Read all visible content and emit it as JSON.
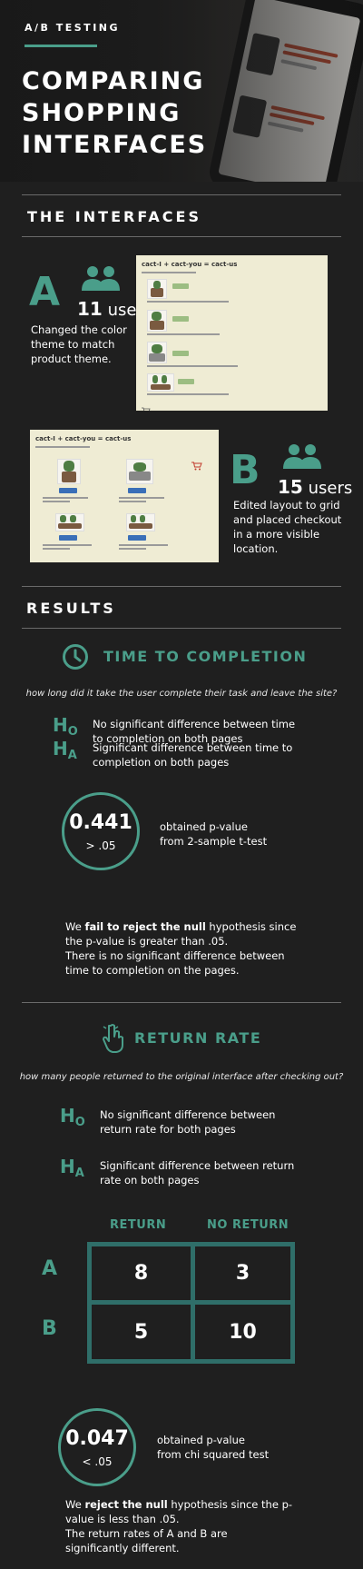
{
  "header": {
    "eyebrow": "A/B TESTING",
    "title_lines": [
      "COMPARING",
      "SHOPPING",
      "INTERFACES"
    ]
  },
  "interfaces": {
    "section_title": "THE INTERFACES",
    "a": {
      "letter": "A",
      "users_count": "11",
      "users_label": "users",
      "description": [
        "Changed the color",
        "theme to match",
        "product theme."
      ],
      "screenshot_title": "cact-I + cact-you = cact-us"
    },
    "b": {
      "letter": "B",
      "users_count": "15",
      "users_label": "users",
      "description": [
        "Edited layout to grid",
        "and placed checkout",
        "in a more visible",
        "location."
      ],
      "screenshot_title": "cact-I + cact-you = cact-us"
    }
  },
  "results": {
    "section_title": "RESULTS",
    "time": {
      "title": "TIME TO COMPLETION",
      "question": "how long did it take the user complete their task and leave the site?",
      "h0_letter": "H",
      "h0_sub": "O",
      "h0": [
        "No significant difference between time",
        "to completion on both pages"
      ],
      "ha_letter": "H",
      "ha_sub": "A",
      "ha": [
        "Significant difference between time to",
        "completion on both pages"
      ],
      "p_value": "0.441",
      "comparison": "> .05",
      "p_note": [
        "obtained p-value",
        "from 2-sample t-test"
      ],
      "conclusion_pre": "We ",
      "conclusion_bold": "fail to reject the null",
      "conclusion_post": " hypothesis since",
      "conclusion_lines": [
        "the p-value is greater than .05.",
        "There is no significant difference between",
        "time to completion on the pages."
      ]
    },
    "return_rate": {
      "title": "RETURN RATE",
      "question": "how many people returned to the original interface after checking out?",
      "h0_letter": "H",
      "h0_sub": "O",
      "h0": [
        "No significant difference between",
        "return rate for both pages"
      ],
      "ha_letter": "H",
      "ha_sub": "A",
      "ha": [
        "Significant difference between return",
        "rate on both pages"
      ],
      "table": {
        "columns": [
          "RETURN",
          "NO RETURN"
        ],
        "rows": [
          {
            "label": "A",
            "values": [
              "8",
              "3"
            ]
          },
          {
            "label": "B",
            "values": [
              "5",
              "10"
            ]
          }
        ]
      },
      "p_value": "0.047",
      "comparison": "< .05",
      "p_note": [
        "obtained p-value",
        "from chi squared test"
      ],
      "conclusion_pre": "We ",
      "conclusion_bold": "reject the null",
      "conclusion_post": " hypothesis since the p-",
      "conclusion_lines": [
        "value is less than .05.",
        "The return rates of A and B are",
        "significantly different."
      ]
    }
  },
  "colors": {
    "accent": "#4a9e8a",
    "table_border": "#2f6e69",
    "background": "#1f1f1f"
  },
  "icons": [
    "users-icon",
    "clock-icon",
    "pointer-hand-icon",
    "cart-icon"
  ]
}
